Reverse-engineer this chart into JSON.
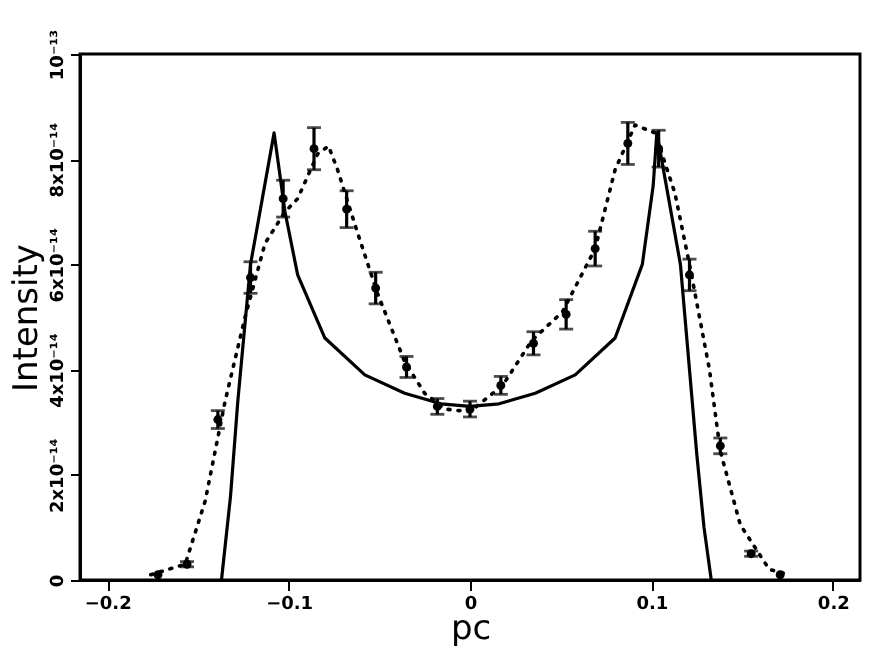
{
  "chart_data": {
    "type": "line",
    "xlabel": "pc",
    "ylabel": "Intensity",
    "xlim": [
      -0.215,
      0.215
    ],
    "xticks": [
      -0.2,
      -0.1,
      0,
      0.1,
      0.2
    ],
    "ylim": [
      0,
      1e-13
    ],
    "yticks": [
      {
        "value": 0,
        "label": "0"
      },
      {
        "value": 2e-14,
        "label": "2x10⁻¹⁴"
      },
      {
        "value": 4e-14,
        "label": "4x10⁻¹⁴"
      },
      {
        "value": 6e-14,
        "label": "6x10⁻¹⁴"
      },
      {
        "value": 8e-14,
        "label": "8x10⁻¹⁴"
      },
      {
        "value": 1e-13,
        "label": "10⁻¹³"
      }
    ],
    "grid": false,
    "series": [
      {
        "color": "#000000",
        "line_style": "solid",
        "x": [
          -0.137,
          -0.132,
          -0.128,
          -0.121,
          -0.108,
          -0.102,
          -0.095,
          -0.08,
          -0.058,
          -0.036,
          -0.016,
          0,
          0.016,
          0.036,
          0.058,
          0.08,
          0.095,
          0.101,
          0.103,
          0.116,
          0.12,
          0.125,
          0.129,
          0.133
        ],
        "values": [
          0,
          1.6e-14,
          3.4e-14,
          6e-14,
          8.5e-14,
          7e-14,
          5.8e-14,
          4.6e-14,
          3.9e-14,
          3.55e-14,
          3.35e-14,
          3.3e-14,
          3.35e-14,
          3.55e-14,
          3.9e-14,
          4.6e-14,
          6e-14,
          7.5e-14,
          8.5e-14,
          6e-14,
          4.4e-14,
          2.4e-14,
          1e-14,
          0
        ]
      },
      {
        "color": "#000000",
        "line_style": "dotted",
        "x": [
          -0.176,
          -0.157,
          -0.146,
          -0.135,
          -0.124,
          -0.113,
          -0.102,
          -0.095,
          -0.084,
          -0.078,
          -0.073,
          -0.062,
          -0.051,
          -0.036,
          -0.025,
          -0.014,
          0,
          0.018,
          0.034,
          0.051,
          0.069,
          0.08,
          0.091,
          0.102,
          0.113,
          0.121,
          0.132,
          0.138,
          0.149,
          0.165,
          0.176
        ],
        "values": [
          1e-15,
          3e-15,
          1.5e-14,
          3.4e-14,
          5e-14,
          6.4e-14,
          7e-14,
          7.25e-14,
          8.1e-14,
          8.25e-14,
          7.8e-14,
          6.6e-14,
          5.45e-14,
          4.15e-14,
          3.55e-14,
          3.25e-14,
          3.2e-14,
          3.7e-14,
          4.55e-14,
          5.1e-14,
          6.3e-14,
          7.8e-14,
          8.65e-14,
          8.5e-14,
          7.35e-14,
          6e-14,
          4e-14,
          2.45e-14,
          1.05e-14,
          2e-15,
          1e-15
        ]
      },
      {
        "type": "scatter",
        "color": "#000000",
        "marker": "circle",
        "x": [
          -0.172,
          -0.156,
          -0.139,
          -0.121,
          -0.103,
          -0.086,
          -0.068,
          -0.052,
          -0.035,
          -0.018,
          0,
          0.017,
          0.035,
          0.053,
          0.069,
          0.087,
          0.104,
          0.121,
          0.138,
          0.155,
          0.171
        ],
        "values": [
          1e-15,
          3e-15,
          3.05e-14,
          5.75e-14,
          7.25e-14,
          8.2e-14,
          7.05e-14,
          5.55e-14,
          4.05e-14,
          3.3e-14,
          3.25e-14,
          3.7e-14,
          4.5e-14,
          5.05e-14,
          6.3e-14,
          8.3e-14,
          8.2e-14,
          5.8e-14,
          2.55e-14,
          5e-15,
          1e-15
        ],
        "errors": [
          null,
          5e-16,
          1.7e-15,
          3e-15,
          3.5e-15,
          4e-15,
          3.5e-15,
          3e-15,
          2e-15,
          1.5e-15,
          1.5e-15,
          1.7e-15,
          2.2e-15,
          2.8e-15,
          3.3e-15,
          4e-15,
          3.5e-15,
          3e-15,
          1.5e-15,
          5e-16,
          null
        ]
      }
    ]
  }
}
